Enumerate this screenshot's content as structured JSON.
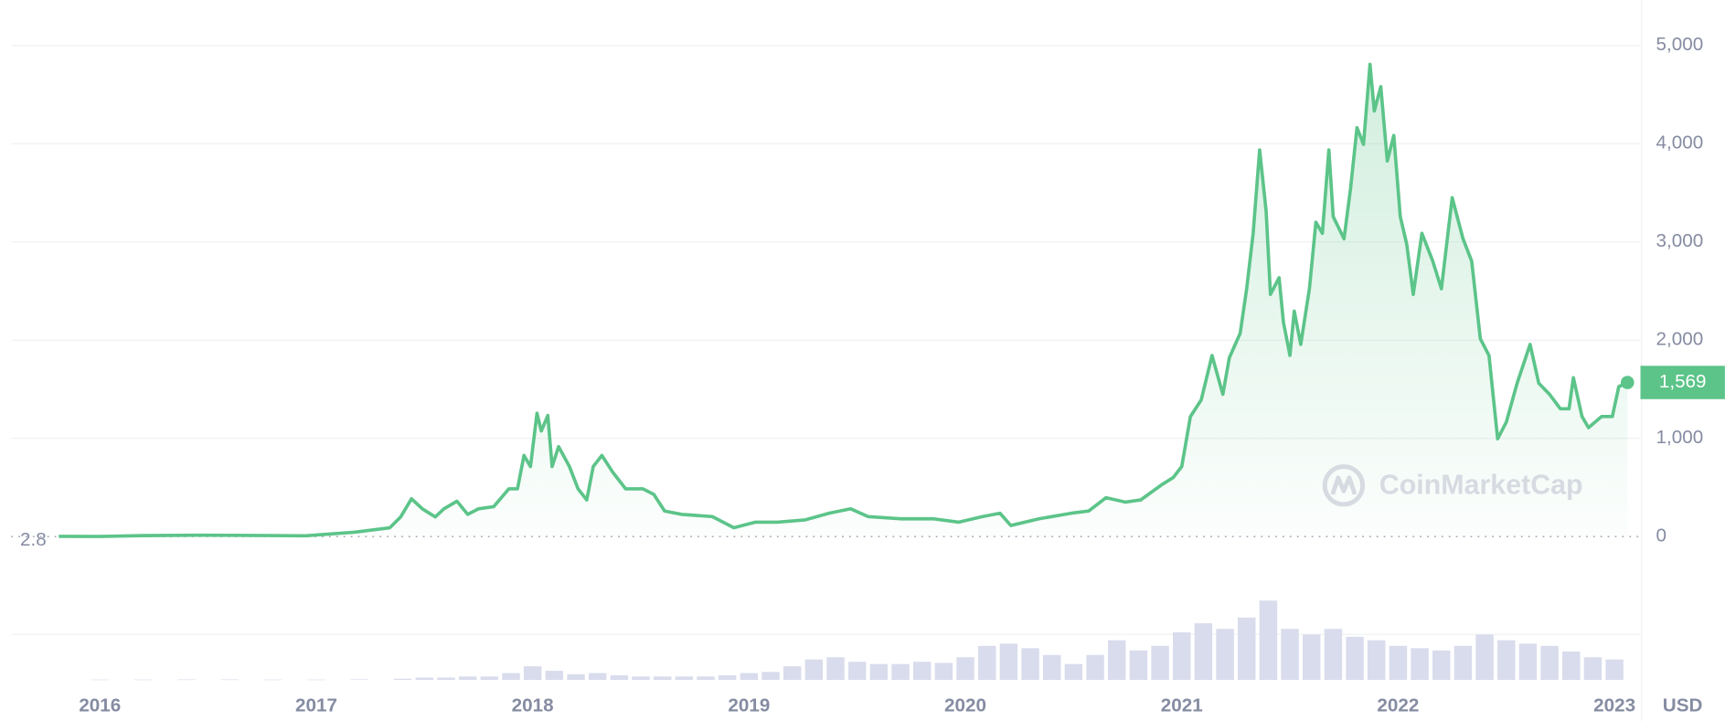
{
  "chart_data": {
    "type": "line",
    "color": "#5cc489",
    "fill_color": "#5cc489",
    "x": [
      2015.81,
      2016.0,
      2016.2,
      2016.45,
      2016.7,
      2016.95,
      2017.18,
      2017.34,
      2017.39,
      2017.44,
      2017.49,
      2017.55,
      2017.59,
      2017.65,
      2017.7,
      2017.75,
      2017.82,
      2017.89,
      2017.93,
      2017.96,
      2017.99,
      2018.02,
      2018.04,
      2018.07,
      2018.09,
      2018.12,
      2018.17,
      2018.21,
      2018.25,
      2018.28,
      2018.32,
      2018.37,
      2018.43,
      2018.51,
      2018.56,
      2018.61,
      2018.69,
      2018.83,
      2018.93,
      2019.03,
      2019.13,
      2019.26,
      2019.37,
      2019.47,
      2019.55,
      2019.7,
      2019.85,
      2019.97,
      2020.08,
      2020.16,
      2020.21,
      2020.34,
      2020.49,
      2020.57,
      2020.65,
      2020.74,
      2020.81,
      2020.91,
      2020.96,
      2021.0,
      2021.04,
      2021.09,
      2021.14,
      2021.19,
      2021.22,
      2021.27,
      2021.3,
      2021.33,
      2021.36,
      2021.39,
      2021.41,
      2021.45,
      2021.47,
      2021.5,
      2021.52,
      2021.55,
      2021.59,
      2021.62,
      2021.65,
      2021.68,
      2021.7,
      2021.75,
      2021.78,
      2021.81,
      2021.84,
      2021.87,
      2021.89,
      2021.92,
      2021.95,
      2021.98,
      2022.01,
      2022.04,
      2022.07,
      2022.11,
      2022.16,
      2022.2,
      2022.25,
      2022.3,
      2022.34,
      2022.38,
      2022.42,
      2022.46,
      2022.5,
      2022.55,
      2022.61,
      2022.65,
      2022.7,
      2022.75,
      2022.79,
      2022.81,
      2022.85,
      2022.88,
      2022.94,
      2022.99,
      2023.02,
      2023.06
    ],
    "values": [
      2.8,
      1,
      10,
      14,
      12,
      8,
      45,
      90,
      200,
      385,
      283,
      200,
      283,
      360,
      226,
      283,
      305,
      486,
      486,
      826,
      713,
      1256,
      1075,
      1233,
      713,
      916,
      713,
      486,
      373,
      713,
      826,
      656,
      486,
      486,
      430,
      260,
      226,
      204,
      90,
      147,
      147,
      170,
      238,
      283,
      204,
      181,
      181,
      147,
      204,
      238,
      113,
      181,
      238,
      260,
      396,
      351,
      373,
      532,
      600,
      713,
      1222,
      1391,
      1844,
      1448,
      1821,
      2070,
      2523,
      3088,
      3937,
      3314,
      2466,
      2636,
      2183,
      1844,
      2296,
      1957,
      2523,
      3201,
      3088,
      3937,
      3258,
      3032,
      3541,
      4163,
      3993,
      4808,
      4333,
      4581,
      3824,
      4084,
      3258,
      2975,
      2466,
      3088,
      2805,
      2523,
      3450,
      3032,
      2805,
      2014,
      1844,
      995,
      1165,
      1561,
      1957,
      1561,
      1448,
      1301,
      1301,
      1618,
      1222,
      1109,
      1222,
      1222,
      1527,
      1569
    ],
    "xlim": [
      2015.59,
      2023.12
    ],
    "xticks": [
      2016,
      2017,
      2018,
      2019,
      2020,
      2021,
      2022,
      2023
    ],
    "ylim": [
      0,
      5350
    ],
    "yticks": [
      0,
      {
        "value": 1000,
        "label": "1,000"
      },
      {
        "value": 2000,
        "label": "2,000"
      },
      {
        "value": 3000,
        "label": "3,000"
      },
      {
        "value": 4000,
        "label": "4,000"
      },
      {
        "value": 5000,
        "label": "5,000"
      }
    ],
    "grid": true,
    "start_label": 2.8,
    "last_price": {
      "value": 1569,
      "label": "1,569"
    },
    "currency": "USD",
    "watermark": "CoinMarketCap",
    "volume": {
      "color": "#d9dcec",
      "y2lim": [
        0,
        100
      ],
      "x": [
        2016.0,
        2016.2,
        2016.4,
        2016.6,
        2016.8,
        2017.0,
        2017.2,
        2017.4,
        2017.5,
        2017.6,
        2017.7,
        2017.8,
        2017.9,
        2018.0,
        2018.1,
        2018.2,
        2018.3,
        2018.4,
        2018.5,
        2018.6,
        2018.7,
        2018.8,
        2018.9,
        2019.0,
        2019.1,
        2019.2,
        2019.3,
        2019.4,
        2019.5,
        2019.6,
        2019.7,
        2019.8,
        2019.9,
        2020.0,
        2020.1,
        2020.2,
        2020.3,
        2020.4,
        2020.5,
        2020.6,
        2020.7,
        2020.8,
        2020.9,
        2021.0,
        2021.1,
        2021.2,
        2021.3,
        2021.4,
        2021.5,
        2021.6,
        2021.7,
        2021.8,
        2021.9,
        2022.0,
        2022.1,
        2022.2,
        2022.3,
        2022.4,
        2022.5,
        2022.6,
        2022.7,
        2022.8,
        2022.9,
        2023.0
      ],
      "values": [
        0.3,
        0.3,
        0.4,
        0.4,
        0.3,
        0.3,
        0.5,
        1,
        2,
        2,
        3,
        3,
        6,
        12,
        8,
        5,
        6,
        4,
        3,
        3,
        3,
        3,
        4,
        6,
        7,
        12,
        18,
        20,
        16,
        14,
        14,
        16,
        15,
        20,
        30,
        32,
        28,
        22,
        14,
        22,
        35,
        26,
        30,
        42,
        50,
        45,
        55,
        70,
        45,
        40,
        45,
        38,
        35,
        30,
        28,
        26,
        30,
        40,
        35,
        32,
        30,
        25,
        20,
        18
      ]
    }
  }
}
